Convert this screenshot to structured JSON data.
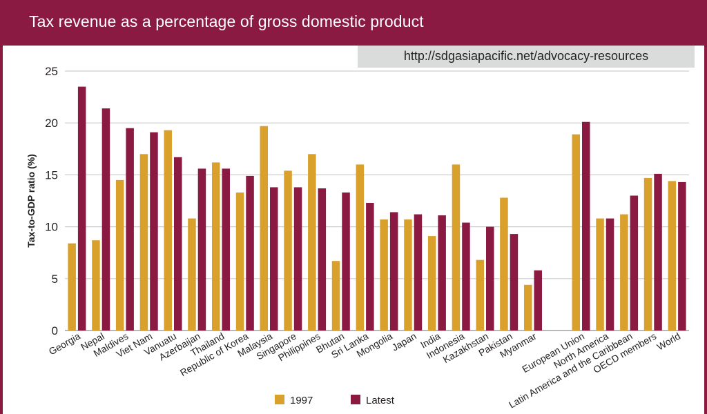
{
  "header": {
    "title": "Tax revenue as a percentage of gross domestic product"
  },
  "source_url": "http://sdgasiapacific.net/advocacy-resources",
  "colors": {
    "header_bg": "#8b1a42",
    "series_1997": "#d9a02b",
    "series_latest": "#8b1a42",
    "grid": "#c9cfcb",
    "url_bg": "#d9dcdb"
  },
  "chart_data": {
    "type": "bar",
    "title": "Tax revenue as a percentage of gross domestic product",
    "xlabel": "",
    "ylabel": "Tax-to-GDP ratio (%)",
    "ylim": [
      0,
      25
    ],
    "yticks": [
      0,
      5,
      10,
      15,
      20,
      25
    ],
    "grid": true,
    "legend_position": "bottom",
    "categories": [
      "Georgia",
      "Nepal",
      "Maldives",
      "Viet Nam",
      "Vanuatu",
      "Azerbaijan",
      "Thailand",
      "Republic of Korea",
      "Malaysia",
      "Singapore",
      "Philippines",
      "Bhutan",
      "Sri Lanka",
      "Mongolia",
      "Japan",
      "India",
      "Indonesia",
      "Kazakhstan",
      "Pakistan",
      "Myanmar",
      "",
      "European Union",
      "North America",
      "Latin America and the Caribbean",
      "OECD members",
      "World"
    ],
    "series": [
      {
        "name": "1997",
        "values": [
          8.4,
          8.7,
          14.5,
          17.0,
          19.3,
          10.8,
          16.2,
          13.3,
          19.7,
          15.4,
          17.0,
          6.7,
          16.0,
          10.7,
          10.7,
          9.1,
          16.0,
          6.8,
          12.8,
          4.4,
          null,
          18.9,
          10.8,
          11.2,
          14.7,
          14.4
        ]
      },
      {
        "name": "Latest",
        "values": [
          23.5,
          21.4,
          19.5,
          19.1,
          16.7,
          15.6,
          15.6,
          14.9,
          13.8,
          13.8,
          13.7,
          13.3,
          12.3,
          11.4,
          11.2,
          11.1,
          10.4,
          10.0,
          9.3,
          5.8,
          null,
          20.1,
          10.8,
          13.0,
          15.1,
          14.3
        ]
      }
    ]
  }
}
